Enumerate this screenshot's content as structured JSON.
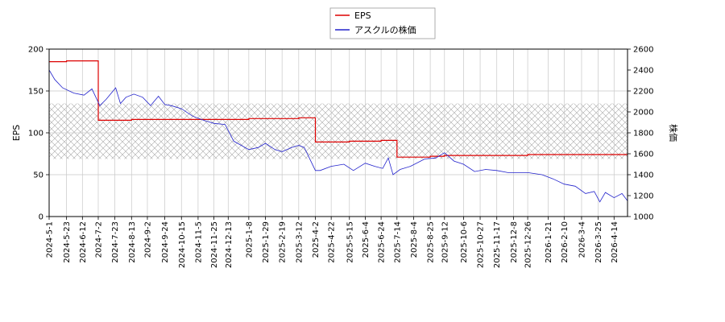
{
  "chart_data": {
    "type": "line",
    "title": "",
    "legend": {
      "placement": "top-center",
      "entries": [
        {
          "name": "EPS",
          "color": "#dd0000"
        },
        {
          "name": "アスクルの株価",
          "color": "#2222cc"
        }
      ]
    },
    "y_left": {
      "label": "EPS",
      "ylim": [
        0,
        200
      ],
      "ticks": [
        0,
        50,
        100,
        150,
        200
      ]
    },
    "y_right": {
      "label": "株価",
      "ylim": [
        1000,
        2600
      ],
      "ticks": [
        1000,
        1200,
        1400,
        1600,
        1800,
        2000,
        2200,
        2400,
        2600
      ]
    },
    "x_range": [
      "2024-05-01",
      "2026-05-01"
    ],
    "x_ticks": [
      "2024-5-1",
      "2024-5-23",
      "2024-6-12",
      "2024-7-2",
      "2024-7-23",
      "2024-8-13",
      "2024-9-2",
      "2024-9-24",
      "2024-10-15",
      "2024-11-5",
      "2024-11-25",
      "2024-12-13",
      "2025-1-8",
      "2025-1-29",
      "2025-2-19",
      "2025-3-12",
      "2025-4-2",
      "2025-4-22",
      "2025-5-15",
      "2025-6-4",
      "2025-6-24",
      "2025-7-14",
      "2025-8-4",
      "2025-8-25",
      "2025-9-12",
      "2025-10-6",
      "2025-10-27",
      "2025-11-17",
      "2025-12-8",
      "2025-12-26",
      "2026-1-21",
      "2026-2-10",
      "2026-3-4",
      "2026-3-25",
      "2026-4-14"
    ],
    "grid": true,
    "band_right_axis": [
      1550,
      2080
    ],
    "series": [
      {
        "name": "EPS",
        "axis": "left",
        "color": "#dd0000",
        "x": [
          "2024-05-01",
          "2024-05-10",
          "2024-05-23",
          "2024-06-12",
          "2024-06-28",
          "2024-07-02",
          "2024-07-23",
          "2024-08-13",
          "2024-09-02",
          "2024-09-24",
          "2024-10-15",
          "2024-11-05",
          "2024-11-25",
          "2024-12-13",
          "2025-01-08",
          "2025-01-29",
          "2025-02-19",
          "2025-03-12",
          "2025-03-20",
          "2025-04-02",
          "2025-04-22",
          "2025-05-15",
          "2025-06-04",
          "2025-06-24",
          "2025-07-03",
          "2025-07-14",
          "2025-08-04",
          "2025-08-25",
          "2025-09-12",
          "2025-10-06",
          "2025-10-27",
          "2025-11-17",
          "2025-12-08",
          "2025-12-26",
          "2026-01-21",
          "2026-02-10",
          "2026-03-04",
          "2026-03-25",
          "2026-04-14",
          "2026-05-01"
        ],
        "y": [
          185,
          185,
          186,
          186,
          186,
          115,
          115,
          116,
          116,
          116,
          116,
          116,
          116,
          116,
          117,
          117,
          117,
          118,
          118,
          89,
          89,
          90,
          90,
          91,
          91,
          71,
          71,
          72,
          73,
          73,
          73,
          73,
          73,
          74,
          74,
          74,
          74,
          74,
          74,
          75
        ]
      },
      {
        "name": "アスクルの株価",
        "axis": "right",
        "color": "#2222cc",
        "x": [
          "2024-05-01",
          "2024-05-08",
          "2024-05-18",
          "2024-06-01",
          "2024-06-14",
          "2024-06-24",
          "2024-07-04",
          "2024-07-12",
          "2024-07-24",
          "2024-07-30",
          "2024-08-06",
          "2024-08-16",
          "2024-08-27",
          "2024-09-06",
          "2024-09-16",
          "2024-09-24",
          "2024-10-02",
          "2024-10-15",
          "2024-10-29",
          "2024-11-12",
          "2024-11-25",
          "2024-12-09",
          "2024-12-20",
          "2025-01-08",
          "2025-01-20",
          "2025-01-29",
          "2025-02-10",
          "2025-02-19",
          "2025-03-03",
          "2025-03-12",
          "2025-03-19",
          "2025-04-02",
          "2025-04-08",
          "2025-04-22",
          "2025-05-08",
          "2025-05-20",
          "2025-06-04",
          "2025-06-16",
          "2025-06-26",
          "2025-07-03",
          "2025-07-09",
          "2025-07-18",
          "2025-07-31",
          "2025-08-18",
          "2025-09-01",
          "2025-09-12",
          "2025-09-24",
          "2025-10-06",
          "2025-10-20",
          "2025-11-03",
          "2025-11-17",
          "2025-12-01",
          "2025-12-15",
          "2025-12-26",
          "2026-01-13",
          "2026-01-27",
          "2026-02-10",
          "2026-02-24",
          "2026-03-09",
          "2026-03-20",
          "2026-03-27",
          "2026-04-03",
          "2026-04-14",
          "2026-04-24",
          "2026-05-01"
        ],
        "y": [
          2400,
          2310,
          2230,
          2180,
          2160,
          2220,
          2060,
          2120,
          2230,
          2080,
          2140,
          2170,
          2140,
          2060,
          2150,
          2070,
          2060,
          2030,
          1960,
          1920,
          1890,
          1880,
          1720,
          1640,
          1660,
          1700,
          1640,
          1620,
          1660,
          1680,
          1660,
          1440,
          1440,
          1480,
          1500,
          1440,
          1510,
          1480,
          1460,
          1560,
          1400,
          1450,
          1480,
          1550,
          1560,
          1610,
          1530,
          1500,
          1430,
          1450,
          1440,
          1420,
          1420,
          1420,
          1400,
          1360,
          1310,
          1290,
          1220,
          1240,
          1140,
          1230,
          1180,
          1220,
          1150
        ]
      }
    ]
  }
}
